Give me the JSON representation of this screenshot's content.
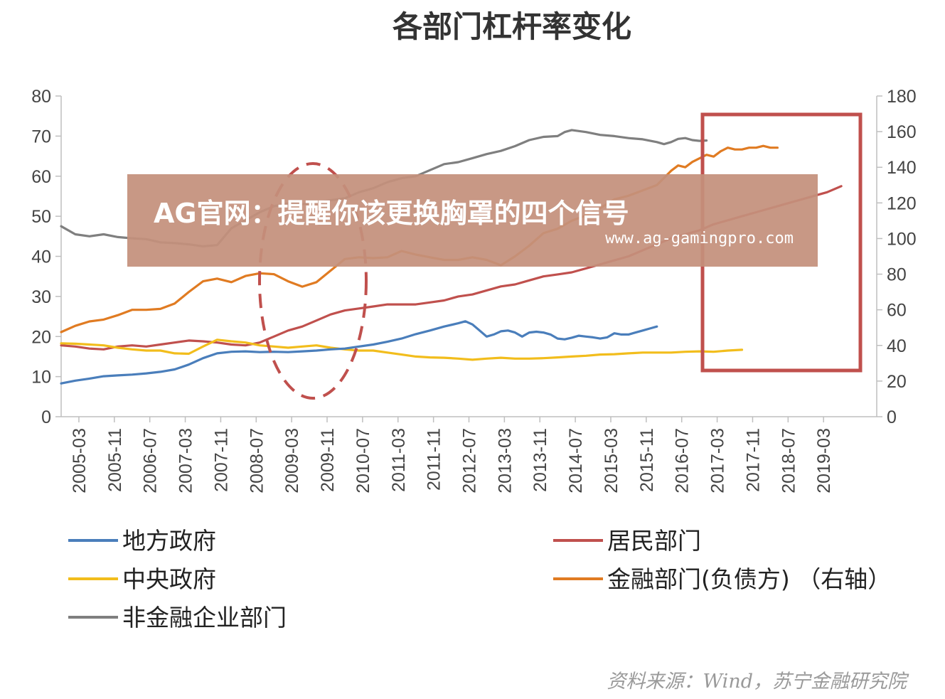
{
  "chart_data": {
    "type": "line",
    "title": "各部门杠杆率变化",
    "x_tick_labels": [
      "2005-03",
      "2005-11",
      "2006-07",
      "2007-03",
      "2007-11",
      "2008-07",
      "2009-03",
      "2009-11",
      "2010-07",
      "2011-03",
      "2011-11",
      "2012-07",
      "2013-03",
      "2013-11",
      "2014-07",
      "2015-03",
      "2015-11",
      "2016-07",
      "2017-03",
      "2017-11",
      "2018-07",
      "2019-03"
    ],
    "ylim_left": [
      0,
      80
    ],
    "yticks_left": [
      0,
      10,
      20,
      30,
      40,
      50,
      60,
      70,
      80
    ],
    "ylim_right": [
      0,
      180
    ],
    "yticks_right": [
      0,
      20,
      40,
      60,
      80,
      100,
      120,
      140,
      160,
      180
    ],
    "series": [
      {
        "name": "地方政府",
        "color": "#4a7ebb",
        "axis": "left",
        "points": [
          [
            0,
            8.3
          ],
          [
            2,
            9
          ],
          [
            4,
            9.5
          ],
          [
            6,
            10.1
          ],
          [
            8,
            10.3
          ],
          [
            10,
            10.5
          ],
          [
            12,
            10.8
          ],
          [
            14,
            11.2
          ],
          [
            16,
            11.8
          ],
          [
            18,
            13
          ],
          [
            20,
            14.6
          ],
          [
            22,
            15.8
          ],
          [
            24,
            16.2
          ],
          [
            26,
            16.3
          ],
          [
            28,
            16.1
          ],
          [
            30,
            16.2
          ],
          [
            32,
            16.1
          ],
          [
            34,
            16.3
          ],
          [
            36,
            16.5
          ],
          [
            38,
            16.8
          ],
          [
            40,
            17
          ],
          [
            42,
            17.5
          ],
          [
            44,
            18
          ],
          [
            46,
            18.7
          ],
          [
            48,
            19.5
          ],
          [
            50,
            20.6
          ],
          [
            52,
            21.5
          ],
          [
            54,
            22.5
          ],
          [
            56,
            23.3
          ],
          [
            57,
            23.8
          ],
          [
            58,
            23
          ],
          [
            59,
            21.5
          ],
          [
            60,
            20
          ],
          [
            61,
            20.5
          ],
          [
            62,
            21.3
          ],
          [
            63,
            21.5
          ],
          [
            64,
            21
          ],
          [
            65,
            20
          ],
          [
            66,
            21
          ],
          [
            67,
            21.2
          ],
          [
            68,
            21
          ],
          [
            69,
            20.5
          ],
          [
            70,
            19.5
          ],
          [
            71,
            19.3
          ],
          [
            72,
            19.7
          ],
          [
            73,
            20.2
          ],
          [
            74,
            20
          ],
          [
            75,
            19.8
          ],
          [
            76,
            19.5
          ],
          [
            77,
            19.8
          ],
          [
            78,
            20.8
          ],
          [
            79,
            20.5
          ],
          [
            80,
            20.5
          ],
          [
            81,
            21
          ],
          [
            82,
            21.5
          ],
          [
            83,
            22
          ],
          [
            84,
            22.5
          ]
        ]
      },
      {
        "name": "中央政府",
        "color": "#f2bd1c",
        "axis": "left",
        "points": [
          [
            0,
            18.3
          ],
          [
            2,
            18.2
          ],
          [
            4,
            18
          ],
          [
            6,
            17.8
          ],
          [
            8,
            17.2
          ],
          [
            10,
            16.8
          ],
          [
            12,
            16.5
          ],
          [
            14,
            16.5
          ],
          [
            16,
            15.8
          ],
          [
            18,
            15.7
          ],
          [
            20,
            17.5
          ],
          [
            22,
            19.2
          ],
          [
            24,
            18.8
          ],
          [
            26,
            18.5
          ],
          [
            28,
            17.8
          ],
          [
            30,
            17.5
          ],
          [
            32,
            17.2
          ],
          [
            34,
            17.5
          ],
          [
            36,
            17.8
          ],
          [
            38,
            17.2
          ],
          [
            40,
            16.8
          ],
          [
            42,
            16.5
          ],
          [
            44,
            16.5
          ],
          [
            46,
            16
          ],
          [
            48,
            15.5
          ],
          [
            50,
            15
          ],
          [
            52,
            14.8
          ],
          [
            54,
            14.7
          ],
          [
            56,
            14.5
          ],
          [
            58,
            14.2
          ],
          [
            60,
            14.5
          ],
          [
            62,
            14.7
          ],
          [
            64,
            14.5
          ],
          [
            66,
            14.5
          ],
          [
            68,
            14.6
          ],
          [
            70,
            14.8
          ],
          [
            72,
            15
          ],
          [
            74,
            15.2
          ],
          [
            76,
            15.5
          ],
          [
            78,
            15.6
          ],
          [
            80,
            15.8
          ],
          [
            82,
            16
          ],
          [
            84,
            16
          ],
          [
            86,
            16
          ],
          [
            88,
            16.2
          ],
          [
            90,
            16.3
          ],
          [
            92,
            16.2
          ],
          [
            94,
            16.5
          ],
          [
            96,
            16.7
          ]
        ]
      },
      {
        "name": "非金融企业部门",
        "color": "#7f7f7f",
        "axis": "left",
        "points": [
          [
            0,
            47.5
          ],
          [
            2,
            45.5
          ],
          [
            4,
            45
          ],
          [
            6,
            45.5
          ],
          [
            8,
            44.8
          ],
          [
            10,
            44.5
          ],
          [
            12,
            44.3
          ],
          [
            14,
            43.5
          ],
          [
            16,
            43.3
          ],
          [
            18,
            43
          ],
          [
            20,
            42.5
          ],
          [
            22,
            42.8
          ],
          [
            24,
            47
          ],
          [
            26,
            49
          ],
          [
            28,
            51
          ],
          [
            30,
            52.5
          ],
          [
            32,
            53.2
          ],
          [
            34,
            53
          ],
          [
            36,
            53.5
          ],
          [
            38,
            54
          ],
          [
            40,
            54.5
          ],
          [
            42,
            56
          ],
          [
            44,
            57
          ],
          [
            46,
            58.5
          ],
          [
            48,
            59.5
          ],
          [
            50,
            60
          ],
          [
            52,
            61.5
          ],
          [
            54,
            63
          ],
          [
            56,
            63.5
          ],
          [
            58,
            64.5
          ],
          [
            60,
            65.5
          ],
          [
            62,
            66.3
          ],
          [
            64,
            67.5
          ],
          [
            66,
            69
          ],
          [
            68,
            69.8
          ],
          [
            70,
            70
          ],
          [
            71,
            71
          ],
          [
            72,
            71.5
          ],
          [
            74,
            71
          ],
          [
            76,
            70.3
          ],
          [
            78,
            70
          ],
          [
            80,
            69.5
          ],
          [
            82,
            69.2
          ],
          [
            84,
            68.5
          ],
          [
            85,
            68
          ],
          [
            86,
            68.5
          ],
          [
            87,
            69.3
          ],
          [
            88,
            69.5
          ],
          [
            89,
            69
          ],
          [
            90,
            68.8
          ],
          [
            91,
            68.9
          ]
        ]
      },
      {
        "name": "居民部门",
        "color": "#c0504d",
        "axis": "left",
        "points": [
          [
            0,
            17.8
          ],
          [
            2,
            17.5
          ],
          [
            4,
            17
          ],
          [
            6,
            16.8
          ],
          [
            8,
            17.5
          ],
          [
            10,
            17.8
          ],
          [
            12,
            17.5
          ],
          [
            14,
            18
          ],
          [
            16,
            18.5
          ],
          [
            18,
            19
          ],
          [
            20,
            18.8
          ],
          [
            22,
            18.5
          ],
          [
            24,
            18
          ],
          [
            26,
            17.8
          ],
          [
            28,
            18.5
          ],
          [
            30,
            20
          ],
          [
            32,
            21.5
          ],
          [
            34,
            22.5
          ],
          [
            36,
            24
          ],
          [
            38,
            25.5
          ],
          [
            40,
            26.5
          ],
          [
            42,
            27
          ],
          [
            44,
            27.5
          ],
          [
            46,
            28
          ],
          [
            48,
            28
          ],
          [
            50,
            28
          ],
          [
            52,
            28.5
          ],
          [
            54,
            29
          ],
          [
            56,
            30
          ],
          [
            58,
            30.5
          ],
          [
            60,
            31.5
          ],
          [
            62,
            32.5
          ],
          [
            64,
            33
          ],
          [
            66,
            34
          ],
          [
            68,
            35
          ],
          [
            70,
            35.5
          ],
          [
            72,
            36
          ],
          [
            74,
            37
          ],
          [
            76,
            38
          ],
          [
            78,
            39
          ],
          [
            80,
            40
          ],
          [
            82,
            41.5
          ],
          [
            84,
            43
          ],
          [
            86,
            44.5
          ],
          [
            88,
            45.5
          ],
          [
            90,
            46.5
          ],
          [
            92,
            48
          ],
          [
            94,
            49
          ],
          [
            96,
            50
          ],
          [
            98,
            51
          ],
          [
            100,
            52
          ],
          [
            102,
            53
          ],
          [
            104,
            54
          ],
          [
            106,
            55
          ],
          [
            108,
            56
          ],
          [
            110,
            57.5
          ]
        ]
      },
      {
        "name": "金融部门(负债方) （右轴）",
        "color": "#e07b22",
        "axis": "right",
        "points": [
          [
            0,
            47.5
          ],
          [
            2,
            51
          ],
          [
            4,
            53.5
          ],
          [
            6,
            54.5
          ],
          [
            8,
            57
          ],
          [
            10,
            60
          ],
          [
            12,
            60
          ],
          [
            14,
            60.5
          ],
          [
            16,
            63.5
          ],
          [
            18,
            70
          ],
          [
            20,
            76
          ],
          [
            22,
            77.5
          ],
          [
            24,
            75.5
          ],
          [
            26,
            79
          ],
          [
            28,
            80.5
          ],
          [
            30,
            80
          ],
          [
            32,
            76
          ],
          [
            34,
            73
          ],
          [
            36,
            75.5
          ],
          [
            38,
            82
          ],
          [
            40,
            88.5
          ],
          [
            42,
            89.5
          ],
          [
            44,
            89
          ],
          [
            46,
            89.5
          ],
          [
            48,
            93
          ],
          [
            50,
            91
          ],
          [
            52,
            89.5
          ],
          [
            54,
            88
          ],
          [
            56,
            88
          ],
          [
            58,
            89.5
          ],
          [
            60,
            88
          ],
          [
            62,
            85
          ],
          [
            64,
            90
          ],
          [
            66,
            96
          ],
          [
            68,
            103
          ],
          [
            70,
            105.5
          ],
          [
            72,
            110
          ],
          [
            74,
            113
          ],
          [
            76,
            117
          ],
          [
            78,
            122
          ],
          [
            80,
            124
          ],
          [
            82,
            127
          ],
          [
            84,
            130
          ],
          [
            86,
            138
          ],
          [
            87,
            141
          ],
          [
            88,
            140
          ],
          [
            89,
            143
          ],
          [
            90,
            145
          ],
          [
            91,
            147
          ],
          [
            92,
            146
          ],
          [
            93,
            149
          ],
          [
            94,
            151
          ],
          [
            95,
            150
          ],
          [
            96,
            150
          ],
          [
            97,
            151
          ],
          [
            98,
            151
          ],
          [
            99,
            152
          ],
          [
            100,
            151
          ],
          [
            101,
            151
          ]
        ]
      }
    ]
  },
  "legend": {
    "local_gov": "地方政府",
    "household": "居民部门",
    "central_gov": "中央政府",
    "financial": "金融部门(负债方) （右轴）",
    "corporate": "非金融企业部门"
  },
  "annotations": {
    "dashed_ellipse_color": "#c0504d",
    "highlight_box_color": "#c0504d"
  },
  "overlay": {
    "title": "AG官网：提醒你该更换胸罩的四个信号",
    "url": "www.ag-gamingpro.com",
    "background_color": "#c4907c"
  },
  "source": "资料来源：Wind，苏宁金融研究院"
}
